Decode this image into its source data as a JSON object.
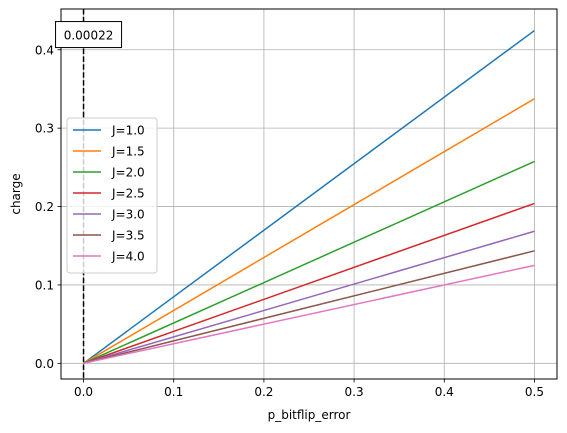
{
  "chart_data": {
    "type": "line",
    "xlabel": "p_bitflip_error",
    "ylabel": "charge",
    "xlim": [
      -0.025,
      0.525
    ],
    "ylim": [
      -0.02,
      0.452
    ],
    "xticks": [
      0.0,
      0.1,
      0.2,
      0.3,
      0.4,
      0.5
    ],
    "xtick_labels": [
      "0.0",
      "0.1",
      "0.2",
      "0.3",
      "0.4",
      "0.5"
    ],
    "yticks": [
      0.0,
      0.1,
      0.2,
      0.3,
      0.4
    ],
    "ytick_labels": [
      "0.0",
      "0.1",
      "0.2",
      "0.3",
      "0.4"
    ],
    "grid": true,
    "legend_position": "center-left",
    "vline": {
      "x": 0.0,
      "style": "dashed",
      "color": "#000000"
    },
    "annotation": {
      "text": "0.00022",
      "x": 0.0,
      "y": 0.4245
    },
    "x": [
      0.0,
      0.5
    ],
    "series": [
      {
        "name": "J=1.0",
        "color": "#1f77b4",
        "values": [
          0.0,
          0.4245
        ]
      },
      {
        "name": "J=1.5",
        "color": "#ff7f0e",
        "values": [
          0.0,
          0.3375
        ]
      },
      {
        "name": "J=2.0",
        "color": "#2ca02c",
        "values": [
          0.0,
          0.2575
        ]
      },
      {
        "name": "J=2.5",
        "color": "#d62728",
        "values": [
          0.0,
          0.204
        ]
      },
      {
        "name": "J=3.0",
        "color": "#9467bd",
        "values": [
          0.0,
          0.1685
        ]
      },
      {
        "name": "J=3.5",
        "color": "#8c564b",
        "values": [
          0.0,
          0.1435
        ]
      },
      {
        "name": "J=4.0",
        "color": "#e377c2",
        "values": [
          0.0,
          0.125
        ]
      }
    ]
  }
}
